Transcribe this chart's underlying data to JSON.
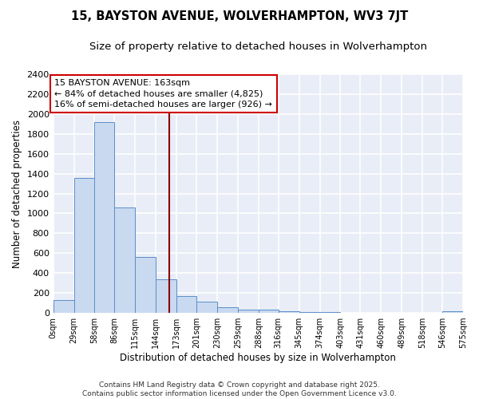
{
  "title1": "15, BAYSTON AVENUE, WOLVERHAMPTON, WV3 7JT",
  "title2": "Size of property relative to detached houses in Wolverhampton",
  "xlabel": "Distribution of detached houses by size in Wolverhampton",
  "ylabel": "Number of detached properties",
  "bar_color": "#c9d9f0",
  "bar_edge_color": "#5b8ec9",
  "bar_heights": [
    130,
    1360,
    1920,
    1060,
    560,
    340,
    170,
    110,
    55,
    35,
    30,
    18,
    8,
    5,
    3,
    2,
    2,
    2,
    2,
    18
  ],
  "bin_edges": [
    0,
    29,
    58,
    86,
    115,
    144,
    173,
    201,
    230,
    259,
    288,
    316,
    345,
    374,
    403,
    431,
    460,
    489,
    518,
    546,
    575
  ],
  "vline_x": 163,
  "vline_color": "#8b0000",
  "annotation_line1": "15 BAYSTON AVENUE: 163sqm",
  "annotation_line2": "← 84% of detached houses are smaller (4,825)",
  "annotation_line3": "16% of semi-detached houses are larger (926) →",
  "annotation_box_color": "white",
  "annotation_box_edge": "#cc0000",
  "ylim": [
    0,
    2400
  ],
  "yticks": [
    0,
    200,
    400,
    600,
    800,
    1000,
    1200,
    1400,
    1600,
    1800,
    2000,
    2200,
    2400
  ],
  "xtick_labels": [
    "0sqm",
    "29sqm",
    "58sqm",
    "86sqm",
    "115sqm",
    "144sqm",
    "173sqm",
    "201sqm",
    "230sqm",
    "259sqm",
    "288sqm",
    "316sqm",
    "345sqm",
    "374sqm",
    "403sqm",
    "431sqm",
    "460sqm",
    "489sqm",
    "518sqm",
    "546sqm",
    "575sqm"
  ],
  "background_color": "#e8edf7",
  "grid_color": "white",
  "footer1": "Contains HM Land Registry data © Crown copyright and database right 2025.",
  "footer2": "Contains public sector information licensed under the Open Government Licence v3.0.",
  "title_fontsize": 10.5,
  "subtitle_fontsize": 9.5,
  "axis_label_fontsize": 8.5,
  "tick_fontsize": 7,
  "annot_fontsize": 8,
  "footer_fontsize": 6.5
}
